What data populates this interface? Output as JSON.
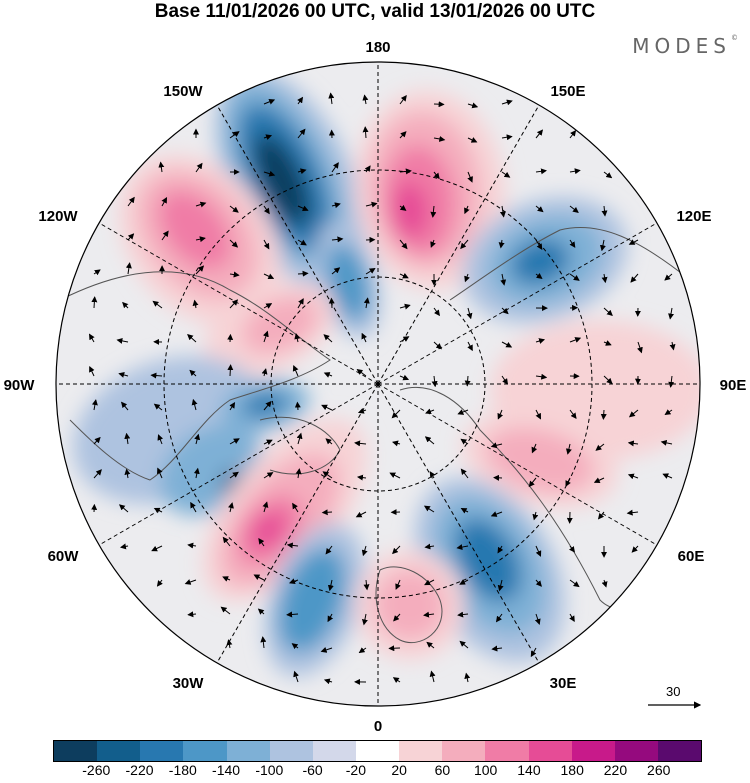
{
  "title": "Base 11/01/2026 00 UTC, valid 13/01/2026 00 UTC",
  "brand": {
    "text": "MODES",
    "mark": "©"
  },
  "map": {
    "projection": "north-polar-stereographic",
    "longitude_labels": {
      "lon_180": "180",
      "lon_150E": "150E",
      "lon_120E": "120E",
      "lon_90E": "90E",
      "lon_60E": "60E",
      "lon_30E": "30E",
      "lon_0": "0",
      "lon_30W": "30W",
      "lon_60W": "60W",
      "lon_90W": "90W",
      "lon_120W": "120W",
      "lon_150W": "150W"
    },
    "vector_reference": {
      "value": "30",
      "icon": "arrow-right-icon"
    }
  },
  "colorbar": {
    "colors": [
      "#0d3d5e",
      "#125e8c",
      "#2878b0",
      "#4d97c7",
      "#7eb0d6",
      "#aec3e0",
      "#d3d8ea",
      "#ffffff",
      "#f7d3d6",
      "#f4adbd",
      "#f07ca6",
      "#e64c96",
      "#c81a8a",
      "#950a7e",
      "#5a0a6e"
    ],
    "ticks": [
      "-260",
      "-220",
      "-180",
      "-140",
      "-100",
      "-60",
      "-20",
      "20",
      "60",
      "100",
      "140",
      "180",
      "220",
      "260"
    ]
  }
}
